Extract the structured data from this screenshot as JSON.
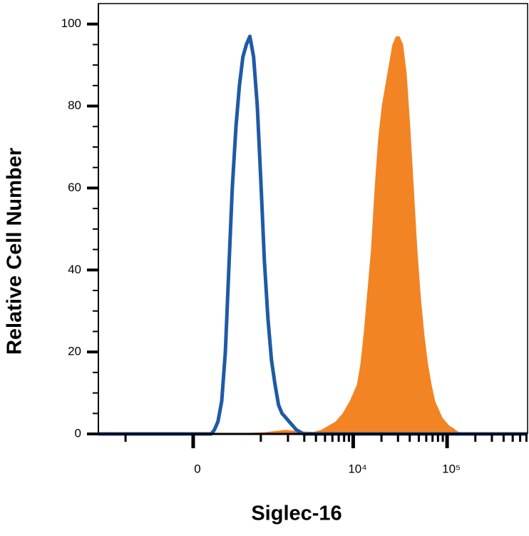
{
  "chart_data": {
    "type": "histogram-overlay",
    "xlabel": "Siglec-16",
    "ylabel": "Relative Cell Number",
    "xscale": "arcsinh",
    "xlim": [
      -2000,
      720000
    ],
    "xticks": [
      {
        "value": 0,
        "label": "0"
      },
      {
        "value": 10000,
        "label": "10⁴"
      },
      {
        "value": 100000,
        "label": "10⁵"
      }
    ],
    "xminorticks": [
      -1000,
      1000,
      2000,
      3000,
      4000,
      5000,
      6000,
      7000,
      8000,
      9000,
      20000,
      30000,
      40000,
      50000,
      60000,
      70000,
      80000,
      90000,
      200000,
      300000,
      400000,
      500000,
      600000,
      700000
    ],
    "ylim": [
      0,
      105
    ],
    "yticks": [
      0,
      20,
      40,
      60,
      80,
      100
    ],
    "yminorticks": [
      5,
      10,
      15,
      25,
      30,
      35,
      45,
      50,
      55,
      65,
      70,
      75,
      85,
      90,
      95
    ],
    "series": [
      {
        "style": "filled",
        "color": "#f28424",
        "x": [
          -2000,
          216,
          1100,
          1890,
          2945,
          3815,
          4563,
          5435,
          6470,
          7710,
          9180,
          10940,
          11930,
          13000,
          14190,
          15490,
          16910,
          18450,
          20140,
          21970,
          23980,
          26170,
          28560,
          31160,
          33990,
          37100,
          40480,
          44180,
          48200,
          52640,
          57440,
          62680,
          68400,
          74660,
          81450,
          88870,
          96970,
          105800,
          115450,
          125940,
          137440,
          149950,
          720000
        ],
        "values": [
          0,
          0,
          0.4,
          1,
          0.6,
          0.5,
          1,
          2,
          3,
          5,
          8,
          12,
          17,
          25,
          35,
          45,
          60,
          72,
          80,
          85,
          90,
          95,
          97,
          97,
          95,
          88,
          75,
          60,
          45,
          33,
          24,
          17,
          12,
          8,
          6,
          4,
          3,
          2,
          1.5,
          0.8,
          0.3,
          0,
          0
        ]
      },
      {
        "style": "line",
        "color": "#1f5aa6",
        "x": [
          -2000,
          180,
          215,
          255,
          300,
          345,
          390,
          440,
          495,
          550,
          610,
          675,
          745,
          825,
          910,
          1000,
          1100,
          1205,
          1320,
          1445,
          1580,
          1725,
          1890,
          2060,
          2255,
          2465,
          2695,
          2945,
          720000
        ],
        "values": [
          0,
          0,
          1,
          3,
          8,
          20,
          40,
          60,
          75,
          85,
          92,
          95,
          97,
          92,
          80,
          62,
          42,
          28,
          18,
          12,
          7,
          5,
          4,
          3,
          2,
          1,
          0.5,
          0,
          0
        ]
      }
    ]
  }
}
